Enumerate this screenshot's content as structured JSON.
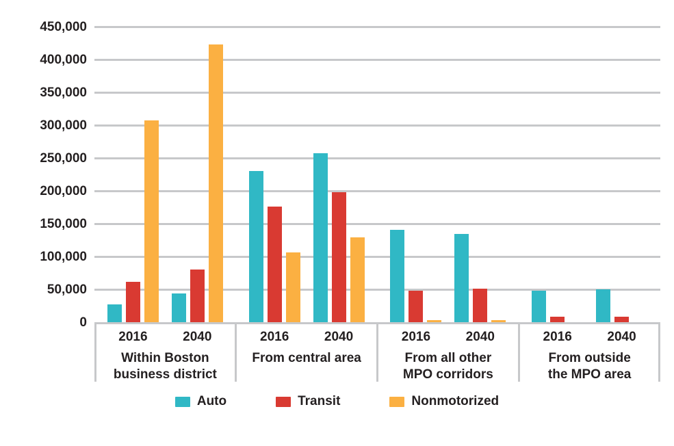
{
  "chart_data": {
    "type": "bar",
    "title": "",
    "xlabel": "",
    "ylabel": "",
    "ylim": [
      0,
      450000
    ],
    "ytick_step": 50000,
    "ytick_labels": [
      "0",
      "50,000",
      "100,000",
      "150,000",
      "200,000",
      "250,000",
      "300,000",
      "350,000",
      "400,000",
      "450,000"
    ],
    "grid": true,
    "legend_position": "bottom",
    "series": [
      {
        "name": "Auto",
        "color": "#30b8c5"
      },
      {
        "name": "Transit",
        "color": "#d93a32"
      },
      {
        "name": "Nonmotorized",
        "color": "#fbb042"
      }
    ],
    "groups": [
      {
        "label_lines": [
          "Within Boston",
          "business district"
        ],
        "clusters": [
          {
            "year": "2016",
            "values": [
              27000,
              61000,
              307000
            ]
          },
          {
            "year": "2040",
            "values": [
              44000,
              80000,
              423000
            ]
          }
        ]
      },
      {
        "label_lines": [
          "From central area"
        ],
        "clusters": [
          {
            "year": "2016",
            "values": [
              230000,
              176000,
              106000
            ]
          },
          {
            "year": "2040",
            "values": [
              257000,
              198000,
              129000
            ]
          }
        ]
      },
      {
        "label_lines": [
          "From all other",
          "MPO corridors"
        ],
        "clusters": [
          {
            "year": "2016",
            "values": [
              141000,
              48000,
              3000
            ]
          },
          {
            "year": "2040",
            "values": [
              134000,
              51000,
              3000
            ]
          }
        ]
      },
      {
        "label_lines": [
          "From outside",
          "the MPO area"
        ],
        "clusters": [
          {
            "year": "2016",
            "values": [
              48000,
              8000,
              0
            ]
          },
          {
            "year": "2040",
            "values": [
              50000,
              8000,
              0
            ]
          }
        ]
      }
    ]
  },
  "legend": {
    "items": [
      {
        "label": "Auto",
        "color": "#30b8c5"
      },
      {
        "label": "Transit",
        "color": "#d93a32"
      },
      {
        "label": "Nonmotorized",
        "color": "#fbb042"
      }
    ]
  },
  "colors": {
    "grid": "#c7c8ca",
    "axis": "#c7c8ca",
    "text": "#231f20",
    "background": "#ffffff"
  }
}
